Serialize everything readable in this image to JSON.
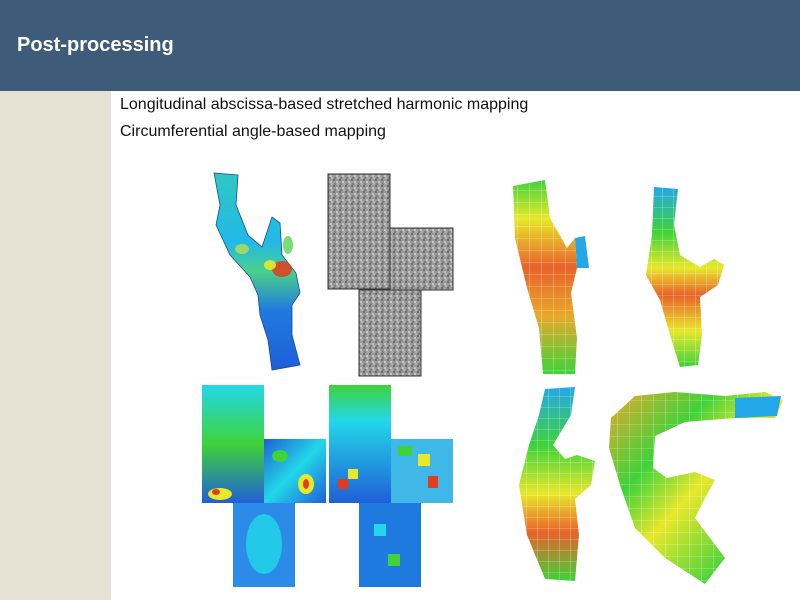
{
  "slide": {
    "title": "Post-processing",
    "bullets": [
      "Longitudinal abscissa-based stretched harmonic mapping",
      "Circumferential angle-based mapping"
    ]
  },
  "colors": {
    "header": "#3e5b79",
    "sidebar": "#e6e1d3",
    "map_blue": "#1f5fd8",
    "map_cyan": "#22d8e8",
    "map_green": "#3fd23a",
    "map_yellow": "#e8e82a",
    "map_red": "#e43b1c"
  },
  "figures": [
    "vessel-wall-shear-colormap",
    "grayscale-unfolded-texture-map",
    "vessel-longitudinal-mapping-1",
    "vessel-longitudinal-mapping-2",
    "unfolded-colormap-a",
    "unfolded-colormap-b",
    "vessel-angle-mapping-1",
    "vessel-angle-mapping-2"
  ]
}
